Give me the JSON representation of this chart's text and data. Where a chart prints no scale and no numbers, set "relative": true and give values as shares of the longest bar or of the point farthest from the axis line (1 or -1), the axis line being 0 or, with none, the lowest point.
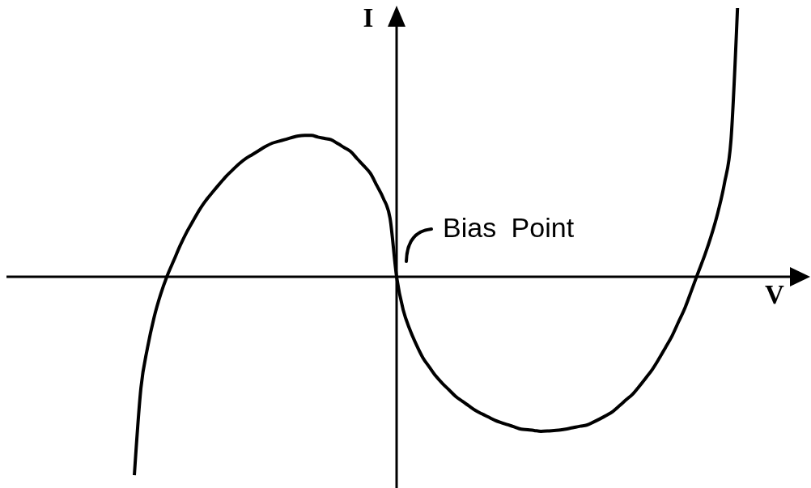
{
  "chart_data": {
    "type": "line",
    "xlabel": "V",
    "ylabel": "I",
    "relative": true,
    "color": "#000000",
    "categories": [
      null,
      null,
      null,
      null,
      null,
      null,
      null,
      null,
      null,
      null,
      null,
      null,
      null,
      null,
      null,
      null,
      null,
      null,
      null,
      null,
      null,
      null,
      null,
      null,
      null,
      null,
      null,
      null,
      null,
      null,
      null,
      null,
      null,
      null,
      null,
      null,
      null,
      null,
      null,
      null,
      null,
      null,
      null,
      null,
      null,
      null,
      null,
      null,
      null,
      null,
      null,
      null,
      null,
      null,
      null,
      null,
      null,
      null,
      null,
      null,
      null,
      null,
      null,
      null,
      null,
      null,
      null,
      null,
      null,
      null,
      null,
      null,
      null,
      null,
      null,
      null,
      null,
      null,
      null,
      null,
      null,
      null,
      null,
      null,
      null,
      null,
      null,
      null,
      null,
      null,
      null,
      null,
      null,
      null,
      null,
      null,
      null,
      null,
      null,
      null,
      null,
      null,
      null,
      null,
      null,
      null,
      null,
      null,
      null,
      null,
      null,
      null,
      null,
      null,
      null,
      null,
      null,
      null,
      null
    ],
    "values": [
      null,
      null,
      null,
      null,
      null,
      null,
      null,
      null,
      null,
      null,
      null,
      null,
      null,
      null,
      null,
      null,
      null,
      null,
      null,
      -0.738,
      -0.414,
      -0.265,
      -0.152,
      -0.066,
      0.003,
      0.06,
      0.117,
      0.167,
      0.21,
      0.252,
      0.287,
      0.317,
      0.346,
      0.374,
      0.398,
      0.421,
      0.44,
      0.455,
      0.47,
      0.485,
      0.497,
      0.504,
      0.511,
      0.518,
      0.524,
      0.526,
      0.526,
      0.52,
      0.515,
      0.51,
      0.496,
      0.481,
      0.466,
      0.439,
      0.413,
      0.385,
      0.339,
      0.291,
      0.218,
      0,
      -0.123,
      -0.195,
      -0.252,
      -0.301,
      -0.336,
      -0.37,
      -0.397,
      -0.421,
      -0.445,
      -0.463,
      -0.48,
      -0.497,
      -0.51,
      -0.522,
      -0.534,
      -0.543,
      -0.551,
      -0.559,
      -0.567,
      -0.569,
      -0.572,
      -0.575,
      -0.574,
      -0.572,
      -0.57,
      -0.566,
      -0.561,
      -0.556,
      -0.552,
      -0.541,
      -0.529,
      -0.516,
      -0.501,
      -0.48,
      -0.458,
      -0.437,
      -0.408,
      -0.377,
      -0.345,
      -0.306,
      -0.264,
      -0.221,
      -0.168,
      -0.115,
      -0.05,
      0.016,
      0.08,
      0.153,
      0.239,
      0.347,
      0.507,
      1,
      null,
      null,
      null,
      null,
      null,
      null,
      null
    ],
    "annotations": [
      "Bias Point"
    ]
  }
}
